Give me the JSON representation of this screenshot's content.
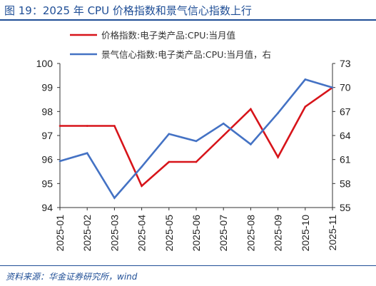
{
  "figure": {
    "title": "图 19：2025 年 CPU 价格指数和景气信心指数上行",
    "source": "资料来源：华金证券研究所，wind"
  },
  "chart_data": {
    "type": "line",
    "title": "",
    "x": [
      "2025-01",
      "2025-02",
      "2025-03",
      "2025-04",
      "2025-05",
      "2025-06",
      "2025-07",
      "2025-08",
      "2025-09",
      "2025-10",
      "2025-11"
    ],
    "y_left": {
      "min": 94,
      "max": 100,
      "ticks": [
        94,
        95,
        96,
        97,
        98,
        99,
        100
      ]
    },
    "y_right": {
      "min": 55,
      "max": 73,
      "ticks": [
        55,
        58,
        61,
        64,
        67,
        70,
        73
      ]
    },
    "grid": false,
    "legend": "top-left",
    "series": [
      {
        "name": "价格指数:电子类产品:CPU:当月值",
        "axis": "left",
        "color": "#d7141a",
        "values": [
          97.4,
          97.4,
          97.4,
          94.9,
          95.9,
          95.9,
          97.0,
          98.1,
          96.1,
          98.2,
          99.0
        ]
      },
      {
        "name": "景气信心指数:电子类产品:CPU:当月值，右",
        "axis": "right",
        "color": "#4472c4",
        "values": [
          60.8,
          61.8,
          56.2,
          60.1,
          64.2,
          63.3,
          65.5,
          62.9,
          66.8,
          71.0,
          70.0
        ]
      }
    ]
  }
}
